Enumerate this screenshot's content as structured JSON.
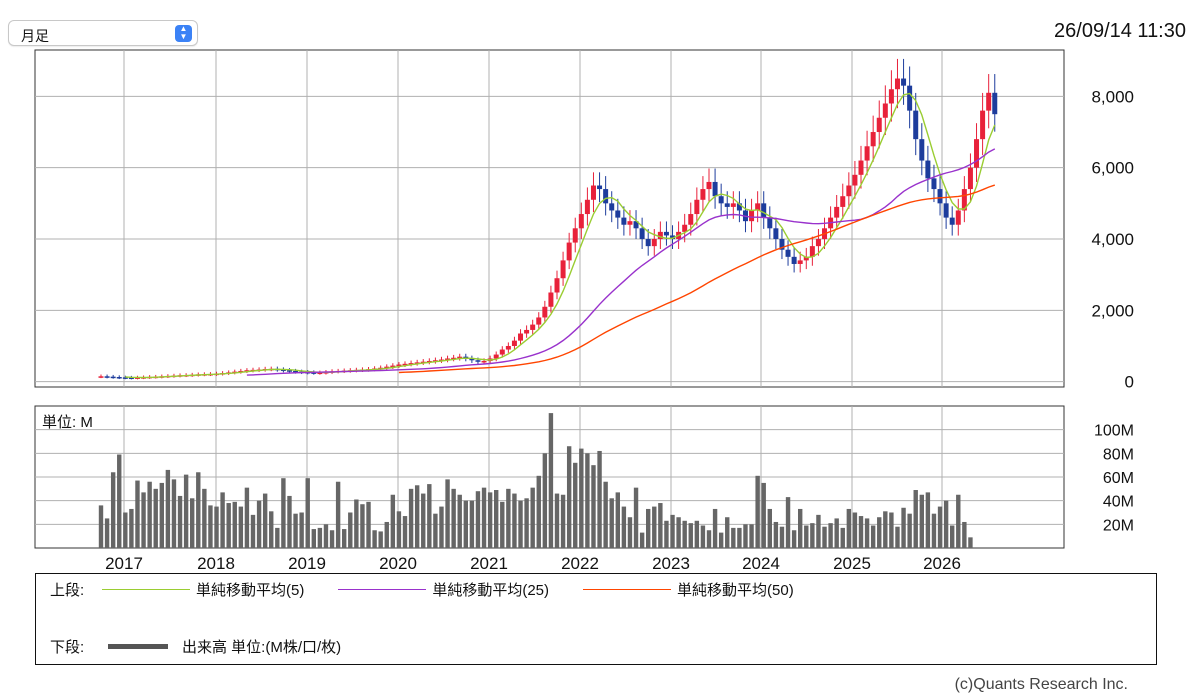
{
  "header": {
    "period_select": "月足",
    "timestamp": "26/09/14 11:30"
  },
  "colors": {
    "up": "#e8213a",
    "down": "#1d3c9c",
    "ma5": "#9acd32",
    "ma25": "#9932cc",
    "ma50": "#ff4500",
    "volume": "#666666",
    "grid": "#b0b0b0"
  },
  "chart_data": [
    {
      "type": "candlestick",
      "panel": "price",
      "y_ticks": [
        "0",
        "2,000",
        "4,000",
        "6,000",
        "8,000"
      ],
      "y_tick_values": [
        0,
        2000,
        4000,
        6000,
        8000
      ],
      "ylim": [
        0,
        8000
      ],
      "x_tick_labels": [
        "2017",
        "2018",
        "2019",
        "2020",
        "2021",
        "2022",
        "2023",
        "2024",
        "2025",
        "2026"
      ],
      "grid": true,
      "series": [
        {
          "name": "単純移動平均(5)",
          "type": "line"
        },
        {
          "name": "単純移動平均(25)",
          "type": "line"
        },
        {
          "name": "単純移動平均(50)",
          "type": "line"
        }
      ],
      "close_values": [
        150,
        140,
        130,
        120,
        115,
        110,
        118,
        125,
        135,
        140,
        150,
        160,
        170,
        180,
        185,
        195,
        205,
        210,
        215,
        225,
        240,
        260,
        280,
        300,
        320,
        330,
        340,
        355,
        360,
        340,
        320,
        300,
        280,
        270,
        260,
        250,
        255,
        270,
        290,
        300,
        310,
        320,
        330,
        340,
        350,
        370,
        390,
        420,
        450,
        480,
        500,
        520,
        540,
        560,
        580,
        600,
        620,
        650,
        670,
        700,
        650,
        600,
        560,
        580,
        650,
        760,
        900,
        1000,
        1150,
        1350,
        1450,
        1600,
        1800,
        2100,
        2500,
        2900,
        3400,
        3900,
        4300,
        4700,
        5100,
        5500,
        5400,
        5000,
        4800,
        4600,
        4400,
        4500,
        4300,
        4000,
        3800,
        4000,
        4200,
        4100,
        4000,
        4200,
        4400,
        4700,
        5100,
        5400,
        5600,
        5200,
        5000,
        4900,
        5000,
        4800,
        4500,
        4800,
        5000,
        4600,
        4300,
        4000,
        3700,
        3500,
        3300,
        3400,
        3500,
        3800,
        4000,
        4300,
        4600,
        4900,
        5200,
        5500,
        5800,
        6200,
        6600,
        7000,
        7400,
        7800,
        8200,
        8500,
        8300,
        7600,
        6800,
        6200,
        5700,
        5400,
        5000,
        4600,
        4400,
        4800,
        5400,
        6000,
        6800,
        7600,
        8100,
        7500
      ]
    },
    {
      "type": "bar",
      "panel": "volume",
      "title": "単位: M",
      "y_ticks": [
        "20M",
        "40M",
        "60M",
        "80M",
        "100M"
      ],
      "y_tick_values": [
        20,
        40,
        60,
        80,
        100
      ],
      "ylim": [
        0,
        110
      ],
      "x_tick_labels": [
        "2017",
        "2018",
        "2019",
        "2020",
        "2021",
        "2022",
        "2023",
        "2024",
        "2025",
        "2026"
      ],
      "values": [
        36,
        25,
        64,
        79,
        30,
        33,
        57,
        47,
        56,
        50,
        55,
        66,
        58,
        44,
        62,
        42,
        64,
        50,
        36,
        35,
        47,
        38,
        39,
        35,
        51,
        28,
        40,
        46,
        31,
        17,
        59,
        44,
        29,
        30,
        59,
        16,
        17,
        20,
        15,
        56,
        16,
        30,
        41,
        37,
        39,
        15,
        14,
        22,
        45,
        31,
        27,
        50,
        53,
        46,
        54,
        29,
        35,
        58,
        50,
        45,
        40,
        40,
        48,
        51,
        47,
        49,
        39,
        50,
        46,
        40,
        42,
        51,
        61,
        80,
        114,
        46,
        45,
        86,
        72,
        84,
        80,
        70,
        82,
        56,
        42,
        47,
        35,
        26,
        51,
        13,
        33,
        35,
        38,
        23,
        28,
        26,
        23,
        21,
        23,
        19,
        15,
        33,
        13,
        26,
        17,
        17,
        20,
        20,
        61,
        55,
        33,
        22,
        18,
        43,
        15,
        33,
        19,
        21,
        28,
        18,
        21,
        25,
        17,
        33,
        30,
        27,
        25,
        19,
        26,
        31,
        30,
        18,
        34,
        29,
        49,
        45,
        47,
        29,
        35,
        40,
        19,
        45,
        22,
        9
      ]
    }
  ],
  "legend": {
    "upper_label": "上段:",
    "lower_label": "下段:",
    "ma5_label": "単純移動平均(5)",
    "ma25_label": "単純移動平均(25)",
    "ma50_label": "単純移動平均(50)",
    "volume_label": "出来高 単位:(M株/口/枚)"
  },
  "footer": {
    "credit": "(c)Quants Research Inc."
  }
}
